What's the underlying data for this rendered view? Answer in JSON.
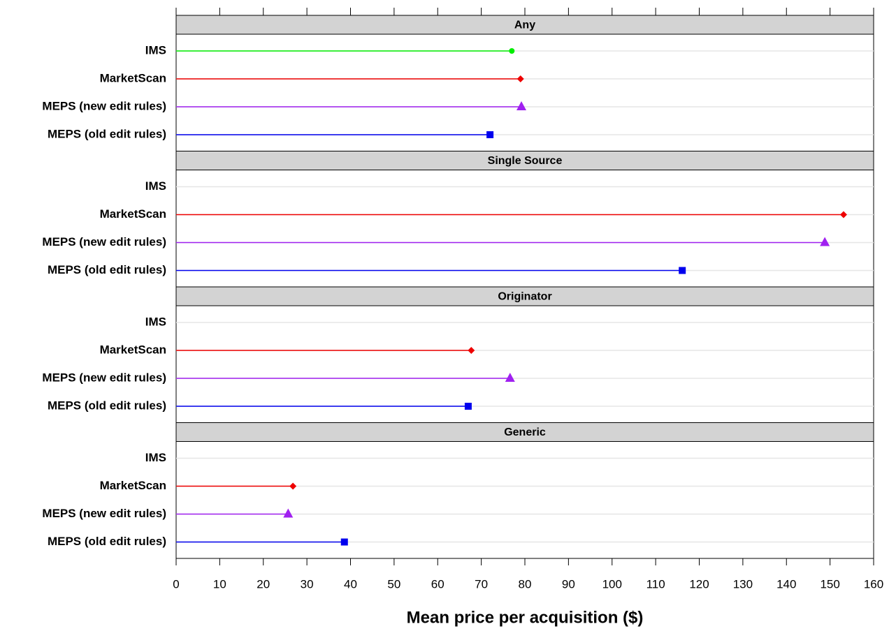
{
  "chart_data": {
    "type": "dot",
    "x_label": "Mean price per acquisition ($)",
    "categories": [
      "IMS",
      "MarketScan",
      "MEPS (new edit rules)",
      "MEPS (old edit rules)"
    ],
    "colors": [
      "#00ee00",
      "#ee0000",
      "#a020f0",
      "#0000ee"
    ],
    "markers": [
      "circle",
      "diamond",
      "triangle",
      "square"
    ],
    "panels": [
      {
        "title": "Any",
        "values": [
          77,
          79,
          79.2,
          72
        ]
      },
      {
        "title": "Single Source",
        "values": [
          null,
          153.1,
          148.8,
          116.1
        ]
      },
      {
        "title": "Originator",
        "values": [
          null,
          67.7,
          76.6,
          67
        ]
      },
      {
        "title": "Generic",
        "values": [
          null,
          26.8,
          25.7,
          38.6
        ]
      }
    ],
    "xlim": [
      0,
      160
    ],
    "xticks": [
      0,
      10,
      20,
      30,
      40,
      50,
      60,
      70,
      80,
      90,
      100,
      110,
      120,
      130,
      140,
      150,
      160
    ],
    "grid": true
  }
}
